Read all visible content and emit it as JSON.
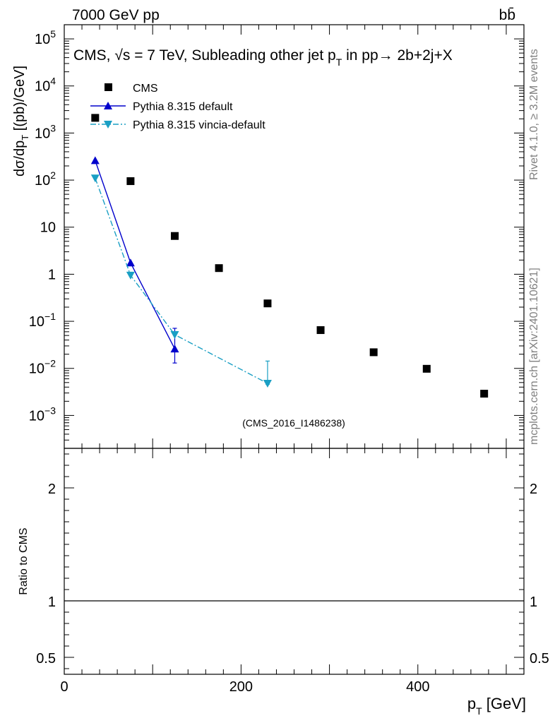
{
  "header": {
    "energy_label": "7000 GeV pp",
    "process_label": "bb̄"
  },
  "side_labels": {
    "rivet": "Rivet 4.1.0, ≥ 3.2M events",
    "mcplots": "mcplots.cern.ch [arXiv:2401.10621]"
  },
  "colors": {
    "cms": "#000000",
    "pythia_default": "#0000cc",
    "pythia_vincia": "#1a9fc4",
    "watermark": "#a0a0a0"
  },
  "chart_data": [
    {
      "type": "scatter",
      "title": "CMS, √s = 7 TeV, Subleading other jet pT in pp → 2b+2j+X",
      "title_parts": {
        "prefix": "CMS, ",
        "sqrt": "√s",
        "rest": " = 7 TeV, Subleading other jet p",
        "sub": "T",
        "suffix": " in pp→  2b+2j+X"
      },
      "ylabel": "dσ/dpT [(pb)/GeV]",
      "ylabel_parts": {
        "main": "dσ/dp",
        "sub": "T",
        "unit": "  [(pb)/GeV]"
      },
      "watermark": "(CMS_2016_I1486238)",
      "xlim": [
        0,
        520
      ],
      "ylim": [
        0.0002,
        200000
      ],
      "yscale": "log",
      "y_ticks": [
        {
          "value": 100000,
          "label": "10",
          "exp": "5"
        },
        {
          "value": 10000,
          "label": "10",
          "exp": "4"
        },
        {
          "value": 1000,
          "label": "10",
          "exp": "3"
        },
        {
          "value": 100,
          "label": "10",
          "exp": "2"
        },
        {
          "value": 10,
          "label": "10",
          "exp": ""
        },
        {
          "value": 1,
          "label": "1",
          "exp": ""
        },
        {
          "value": 0.1,
          "label": "10",
          "exp": "−1"
        },
        {
          "value": 0.01,
          "label": "10",
          "exp": "−2"
        },
        {
          "value": 0.001,
          "label": "10",
          "exp": "−3"
        }
      ],
      "legend": {
        "position": "top-left",
        "entries": [
          "CMS",
          "Pythia 8.315 default",
          "Pythia 8.315 vincia-default"
        ]
      },
      "series": [
        {
          "name": "CMS",
          "marker": "square",
          "x": [
            35,
            75,
            125,
            175,
            230,
            290,
            350,
            410,
            475
          ],
          "y": [
            2100,
            95,
            6.5,
            1.35,
            0.24,
            0.065,
            0.022,
            0.0098,
            0.0029
          ]
        },
        {
          "name": "Pythia 8.315 default",
          "marker": "triangle-up",
          "line": "solid",
          "x": [
            35,
            75,
            125
          ],
          "y": [
            260,
            1.75,
            0.026
          ],
          "yerr_low": [
            0,
            0,
            0.013
          ],
          "yerr_high": [
            0,
            0,
            0.045
          ]
        },
        {
          "name": "Pythia 8.315 vincia-default",
          "marker": "triangle-down",
          "line": "dashdot",
          "x": [
            35,
            75,
            125,
            230
          ],
          "y": [
            110,
            0.95,
            0.052,
            0.0048
          ],
          "yerr_low": [
            0,
            0,
            0,
            0.0002
          ],
          "yerr_high": [
            0,
            0,
            0,
            0.0095
          ]
        }
      ]
    },
    {
      "type": "line",
      "ylabel": "Ratio to CMS",
      "xlabel": "pT [GeV]",
      "xlabel_parts": {
        "main": "p",
        "sub": "T",
        "unit": " [GeV]"
      },
      "xlim": [
        0,
        520
      ],
      "ylim": [
        0.35,
        2.35
      ],
      "y_ticks": [
        {
          "value": 2,
          "label": "2"
        },
        {
          "value": 1,
          "label": "1"
        },
        {
          "value": 0.5,
          "label": "0.5"
        }
      ],
      "x_ticks": [
        {
          "value": 0,
          "label": "0"
        },
        {
          "value": 200,
          "label": "200"
        },
        {
          "value": 400,
          "label": "400"
        }
      ],
      "reference_line": 1
    }
  ]
}
